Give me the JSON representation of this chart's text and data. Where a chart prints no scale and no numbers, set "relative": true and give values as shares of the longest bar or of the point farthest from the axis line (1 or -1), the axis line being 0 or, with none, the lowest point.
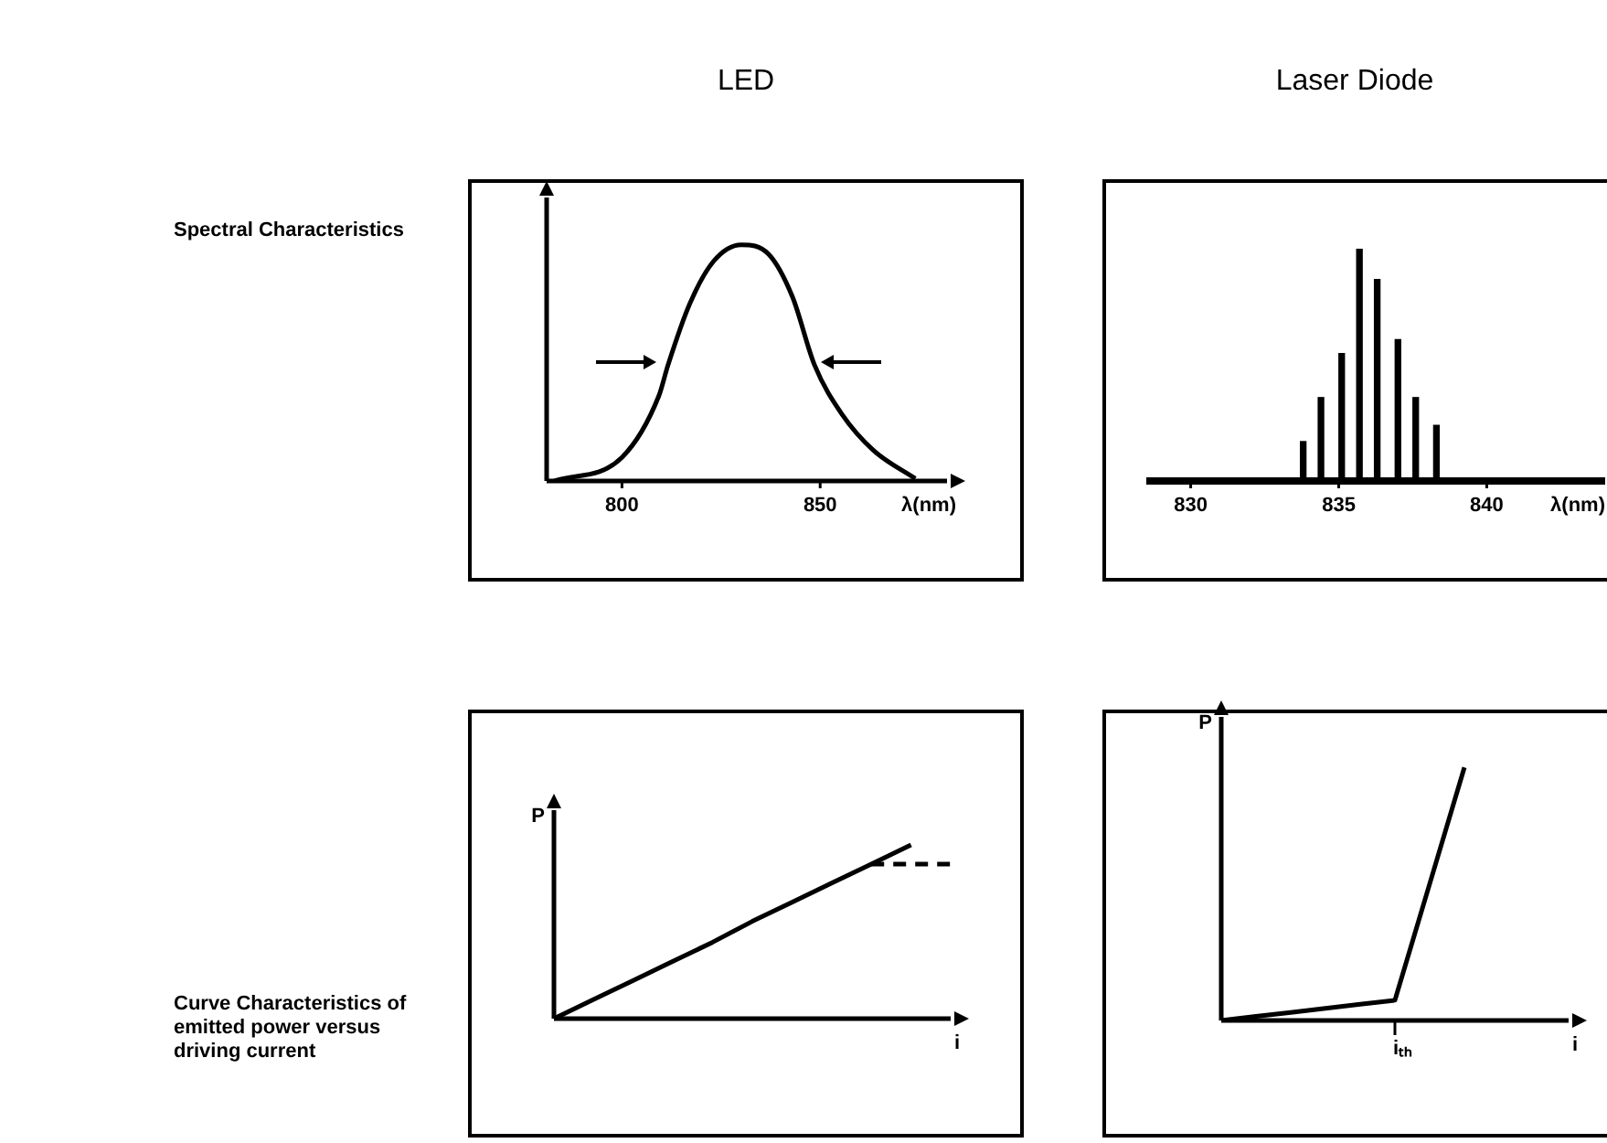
{
  "chart_data": [
    {
      "type": "line",
      "title": "LED",
      "annotations": [
        "Spectral Characteristics"
      ],
      "xlabel": "λ(nm)",
      "x": [
        782.9,
        800,
        809.3,
        811.6,
        817.1,
        823.1,
        830.1,
        837,
        843,
        848.6,
        855.6,
        863.4,
        874
      ],
      "values": [
        0,
        0.1,
        0.36,
        0.49,
        0.75,
        0.93,
        1,
        0.96,
        0.78,
        0.49,
        0.28,
        0.13,
        0.01
      ],
      "color": "#000000",
      "relative": true,
      "xlim": [
        781,
        882
      ],
      "xticks": [
        800,
        850
      ],
      "tick_labels": "x",
      "marker": "none"
    },
    {
      "type": "bar",
      "title": "Laser Diode",
      "xlabel": "λ(nm)",
      "x": [
        833.8,
        834.4,
        835.1,
        835.7,
        836.3,
        837.0,
        837.6,
        838.3
      ],
      "values": [
        0.17,
        0.36,
        0.55,
        1,
        0.87,
        0.61,
        0.36,
        0.24
      ],
      "color": "#000000",
      "relative": true,
      "xlim": [
        828.5,
        844
      ],
      "xticks": [
        830,
        835,
        840
      ],
      "tick_labels": "x"
    },
    {
      "type": "line",
      "annotations": [
        "Curve Characteristics of emitted power versus driving current"
      ],
      "xlabel": "i",
      "ylabel": "P",
      "categories": [
        null,
        null,
        null,
        null,
        null,
        null,
        null,
        null,
        null,
        null,
        null
      ],
      "series": [
        {
          "color": "#000000",
          "values": [
            0,
            0.11,
            0.22,
            0.33,
            0.44,
            0.56,
            0.67,
            0.78,
            0.89,
            1,
            null
          ]
        },
        {
          "color": "#000000",
          "line_style": "dashed",
          "values": [
            null,
            null,
            null,
            null,
            null,
            null,
            null,
            null,
            0.89,
            0.89,
            0.89
          ]
        }
      ],
      "relative": true,
      "tick_labels": false,
      "marker": "none"
    },
    {
      "type": "line",
      "xlabel": "i",
      "ylabel": "P",
      "annotations": [
        "iₜₕ"
      ],
      "categories": [
        null,
        null,
        null,
        null,
        null,
        null,
        null,
        null,
        null,
        null,
        null
      ],
      "values": [
        0,
        0.016,
        0.032,
        0.048,
        0.064,
        0.08,
        0.54,
        1,
        null,
        null,
        null
      ],
      "color": "#000000",
      "relative": true,
      "tick_labels": false,
      "marker": "none"
    }
  ]
}
